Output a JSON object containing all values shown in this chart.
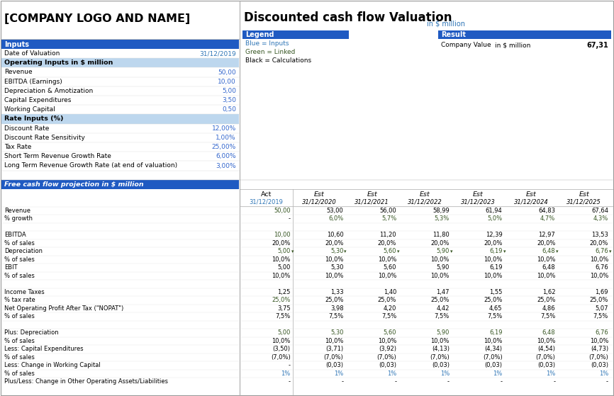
{
  "title_left": "[COMPANY LOGO AND NAME]",
  "title_right": "Discounted cash flow Valuation",
  "subtitle_right": "in $ million",
  "colors": {
    "blue_header": "#1F5AC2",
    "blue_light": "#BDD7EE",
    "white": "#FFFFFF",
    "black": "#000000",
    "blue_text": "#2E75B6",
    "green_text": "#375623",
    "blue_input": "#3366CC"
  },
  "inputs_section": {
    "header": "Inputs",
    "rows": [
      {
        "label": "Date of Valuation",
        "value": "31/12/2019",
        "color": "blue_text",
        "bold": false,
        "bg": null
      },
      {
        "label": "Operating Inputs in $ million",
        "value": "",
        "color": "white",
        "bold": true,
        "bg": "blue_light"
      },
      {
        "label": "Revenue",
        "value": "50,00",
        "color": "blue_input",
        "bold": false,
        "bg": null
      },
      {
        "label": "EBITDA (Earnings)",
        "value": "10,00",
        "color": "blue_input",
        "bold": false,
        "bg": null
      },
      {
        "label": "Depreciation & Amotization",
        "value": "5,00",
        "color": "blue_input",
        "bold": false,
        "bg": null
      },
      {
        "label": "Capital Expenditures",
        "value": "3,50",
        "color": "blue_input",
        "bold": false,
        "bg": null
      },
      {
        "label": "Working Capital",
        "value": "0,50",
        "color": "blue_input",
        "bold": false,
        "bg": null
      },
      {
        "label": "Rate Inputs (%)",
        "value": "",
        "color": "white",
        "bold": true,
        "bg": "blue_light"
      },
      {
        "label": "Discount Rate",
        "value": "12,00%",
        "color": "blue_input",
        "bold": false,
        "bg": null
      },
      {
        "label": "Discount Rate Sensitivity",
        "value": "1,00%",
        "color": "blue_input",
        "bold": false,
        "bg": null
      },
      {
        "label": "Tax Rate",
        "value": "25,00%",
        "color": "blue_input",
        "bold": false,
        "bg": null
      },
      {
        "label": "Short Term Revenue Growth Rate",
        "value": "6,00%",
        "color": "blue_input",
        "bold": false,
        "bg": null
      },
      {
        "label": "Long Term Revenue Growth Rate (at end of valuation)",
        "value": "3,00%",
        "color": "blue_input",
        "bold": false,
        "bg": null
      }
    ]
  },
  "legend_section": {
    "header": "Legend",
    "items": [
      {
        "text": "Blue = Inputs",
        "color": "#2E75B6"
      },
      {
        "text": "Green = Linked",
        "color": "#375623"
      },
      {
        "text": "Black = Calculations",
        "color": "#000000"
      }
    ]
  },
  "result_section": {
    "header": "Result",
    "label": "Company Value",
    "unit": "in $ million",
    "value": "67,31"
  },
  "fcf_header": "Free cash flow projection in $ million",
  "columns": {
    "labels": [
      "Act",
      "Est",
      "Est",
      "Est",
      "Est",
      "Est",
      "Est"
    ],
    "dates": [
      "31/12/2019",
      "31/12/2020",
      "31/12/2021",
      "31/12/2022",
      "31/12/2023",
      "31/12/2024",
      "31/12/2025"
    ]
  },
  "fcf_rows": [
    {
      "label": "Revenue",
      "values": [
        "50,00",
        "53,00",
        "56,00",
        "58,99",
        "61,94",
        "64,83",
        "67,64"
      ],
      "colors": [
        "green",
        "black",
        "black",
        "black",
        "black",
        "black",
        "black"
      ]
    },
    {
      "label": "% growth",
      "values": [
        "-",
        "6,0%",
        "5,7%",
        "5,3%",
        "5,0%",
        "4,7%",
        "4,3%"
      ],
      "colors": [
        "black",
        "green",
        "green",
        "green",
        "green",
        "green",
        "green"
      ]
    },
    {
      "label": "",
      "values": [
        "",
        "",
        "",
        "",
        "",
        "",
        ""
      ],
      "colors": [
        "black",
        "black",
        "black",
        "black",
        "black",
        "black",
        "black"
      ]
    },
    {
      "label": "EBITDA",
      "values": [
        "10,00",
        "10,60",
        "11,20",
        "11,80",
        "12,39",
        "12,97",
        "13,53"
      ],
      "colors": [
        "green",
        "black",
        "black",
        "black",
        "black",
        "black",
        "black"
      ]
    },
    {
      "label": "% of sales",
      "values": [
        "20,0%",
        "20,0%",
        "20,0%",
        "20,0%",
        "20,0%",
        "20,0%",
        "20,0%"
      ],
      "colors": [
        "black",
        "black",
        "black",
        "black",
        "black",
        "black",
        "black"
      ]
    },
    {
      "label": "Depreciation",
      "values": [
        "5,00",
        "5,30",
        "5,60",
        "5,90",
        "6,19",
        "6,48",
        "6,76"
      ],
      "colors": [
        "green",
        "green",
        "green",
        "green",
        "green",
        "green",
        "green"
      ],
      "arrow": true
    },
    {
      "label": "% of sales",
      "values": [
        "10,0%",
        "10,0%",
        "10,0%",
        "10,0%",
        "10,0%",
        "10,0%",
        "10,0%"
      ],
      "colors": [
        "black",
        "black",
        "black",
        "black",
        "black",
        "black",
        "black"
      ]
    },
    {
      "label": "EBIT",
      "values": [
        "5,00",
        "5,30",
        "5,60",
        "5,90",
        "6,19",
        "6,48",
        "6,76"
      ],
      "colors": [
        "black",
        "black",
        "black",
        "black",
        "black",
        "black",
        "black"
      ]
    },
    {
      "label": "% of sales",
      "values": [
        "10,0%",
        "10,0%",
        "10,0%",
        "10,0%",
        "10,0%",
        "10,0%",
        "10,0%"
      ],
      "colors": [
        "black",
        "black",
        "black",
        "black",
        "black",
        "black",
        "black"
      ]
    },
    {
      "label": "",
      "values": [
        "",
        "",
        "",
        "",
        "",
        "",
        ""
      ],
      "colors": [
        "black",
        "black",
        "black",
        "black",
        "black",
        "black",
        "black"
      ]
    },
    {
      "label": "Income Taxes",
      "values": [
        "1,25",
        "1,33",
        "1,40",
        "1,47",
        "1,55",
        "1,62",
        "1,69"
      ],
      "colors": [
        "black",
        "black",
        "black",
        "black",
        "black",
        "black",
        "black"
      ]
    },
    {
      "label": "% tax rate",
      "values": [
        "25,0%",
        "25,0%",
        "25,0%",
        "25,0%",
        "25,0%",
        "25,0%",
        "25,0%"
      ],
      "colors": [
        "green",
        "black",
        "black",
        "black",
        "black",
        "black",
        "black"
      ]
    },
    {
      "label": "Net Operating Profit After Tax (\"NOPAT\")",
      "values": [
        "3,75",
        "3,98",
        "4,20",
        "4,42",
        "4,65",
        "4,86",
        "5,07"
      ],
      "colors": [
        "black",
        "black",
        "black",
        "black",
        "black",
        "black",
        "black"
      ]
    },
    {
      "label": "% of sales",
      "values": [
        "7,5%",
        "7,5%",
        "7,5%",
        "7,5%",
        "7,5%",
        "7,5%",
        "7,5%"
      ],
      "colors": [
        "black",
        "black",
        "black",
        "black",
        "black",
        "black",
        "black"
      ]
    },
    {
      "label": "",
      "values": [
        "",
        "",
        "",
        "",
        "",
        "",
        ""
      ],
      "colors": [
        "black",
        "black",
        "black",
        "black",
        "black",
        "black",
        "black"
      ]
    },
    {
      "label": "Plus: Depreciation",
      "values": [
        "5,00",
        "5,30",
        "5,60",
        "5,90",
        "6,19",
        "6,48",
        "6,76"
      ],
      "colors": [
        "green",
        "green",
        "green",
        "green",
        "green",
        "green",
        "green"
      ]
    },
    {
      "label": "% of sales",
      "values": [
        "10,0%",
        "10,0%",
        "10,0%",
        "10,0%",
        "10,0%",
        "10,0%",
        "10,0%"
      ],
      "colors": [
        "black",
        "black",
        "black",
        "black",
        "black",
        "black",
        "black"
      ]
    },
    {
      "label": "Less: Capital Expenditures",
      "values": [
        "(3,50)",
        "(3,71)",
        "(3,92)",
        "(4,13)",
        "(4,34)",
        "(4,54)",
        "(4,73)"
      ],
      "colors": [
        "black",
        "black",
        "black",
        "black",
        "black",
        "black",
        "black"
      ]
    },
    {
      "label": "% of sales",
      "values": [
        "(7,0%)",
        "(7,0%)",
        "(7,0%)",
        "(7,0%)",
        "(7,0%)",
        "(7,0%)",
        "(7,0%)"
      ],
      "colors": [
        "black",
        "black",
        "black",
        "black",
        "black",
        "black",
        "black"
      ]
    },
    {
      "label": "Less: Change in Working Capital",
      "values": [
        "-",
        "(0,03)",
        "(0,03)",
        "(0,03)",
        "(0,03)",
        "(0,03)",
        "(0,03)"
      ],
      "colors": [
        "black",
        "black",
        "black",
        "black",
        "black",
        "black",
        "black"
      ]
    },
    {
      "label": "% of sales",
      "values": [
        "1%",
        "1%",
        "1%",
        "1%",
        "1%",
        "1%",
        "1%"
      ],
      "colors": [
        "blue",
        "blue",
        "blue",
        "blue",
        "blue",
        "blue",
        "blue"
      ]
    },
    {
      "label": "Plus/Less: Change in Other Operating Assets/Liabilities",
      "values": [
        "-",
        "-",
        "-",
        "-",
        "-",
        "-",
        "-"
      ],
      "colors": [
        "black",
        "black",
        "black",
        "black",
        "black",
        "black",
        "black"
      ]
    }
  ]
}
